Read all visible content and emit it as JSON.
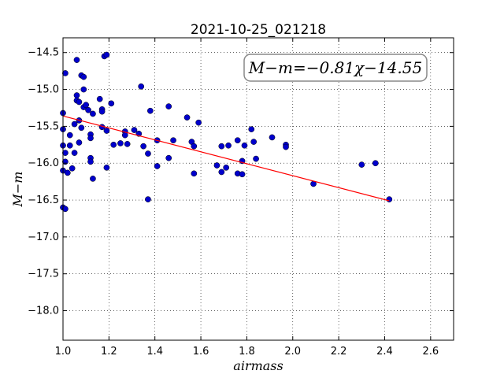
{
  "chart_data": {
    "type": "scatter",
    "title": "2021-10-25_021218",
    "xlabel": "airmass",
    "ylabel": "M−m",
    "xlim": [
      1.0,
      2.7
    ],
    "ylim": [
      -18.4,
      -14.3
    ],
    "grid": true,
    "x_ticks": [
      "1.0",
      "1.2",
      "1.4",
      "1.6",
      "1.8",
      "2.0",
      "2.2",
      "2.4",
      "2.6"
    ],
    "y_ticks": [
      "−14.5",
      "−15.0",
      "−15.5",
      "−16.0",
      "−16.5",
      "−17.0",
      "−17.5",
      "−18.0"
    ],
    "annotation": "M−m=−0.81χ−14.55",
    "annotation_placement": "top-right",
    "fit_line": {
      "slope": -0.81,
      "intercept": -14.55,
      "x_range": [
        1.0,
        2.42
      ],
      "color": "#ff0000"
    },
    "marker_color": "#0000cc",
    "points": [
      [
        1.0,
        -15.32
      ],
      [
        1.0,
        -15.54
      ],
      [
        1.0,
        -15.76
      ],
      [
        1.0,
        -16.1
      ],
      [
        1.0,
        -16.6
      ],
      [
        1.01,
        -14.78
      ],
      [
        1.01,
        -15.86
      ],
      [
        1.01,
        -15.98
      ],
      [
        1.01,
        -16.62
      ],
      [
        1.02,
        -16.13
      ],
      [
        1.03,
        -15.62
      ],
      [
        1.03,
        -15.76
      ],
      [
        1.04,
        -16.07
      ],
      [
        1.05,
        -15.47
      ],
      [
        1.05,
        -15.86
      ],
      [
        1.06,
        -14.6
      ],
      [
        1.06,
        -15.08
      ],
      [
        1.06,
        -15.15
      ],
      [
        1.07,
        -15.17
      ],
      [
        1.07,
        -15.42
      ],
      [
        1.07,
        -15.72
      ],
      [
        1.08,
        -14.81
      ],
      [
        1.08,
        -15.52
      ],
      [
        1.09,
        -14.83
      ],
      [
        1.09,
        -15.0
      ],
      [
        1.09,
        -15.24
      ],
      [
        1.1,
        -15.21
      ],
      [
        1.11,
        -15.28
      ],
      [
        1.12,
        -15.61
      ],
      [
        1.12,
        -15.66
      ],
      [
        1.12,
        -15.93
      ],
      [
        1.12,
        -15.98
      ],
      [
        1.13,
        -15.33
      ],
      [
        1.13,
        -16.21
      ],
      [
        1.16,
        -15.13
      ],
      [
        1.17,
        -15.27
      ],
      [
        1.17,
        -15.3
      ],
      [
        1.17,
        -15.51
      ],
      [
        1.18,
        -14.55
      ],
      [
        1.19,
        -14.53
      ],
      [
        1.19,
        -15.56
      ],
      [
        1.19,
        -16.06
      ],
      [
        1.21,
        -15.19
      ],
      [
        1.22,
        -15.75
      ],
      [
        1.25,
        -15.73
      ],
      [
        1.27,
        -15.57
      ],
      [
        1.27,
        -15.62
      ],
      [
        1.28,
        -15.74
      ],
      [
        1.31,
        -15.55
      ],
      [
        1.33,
        -15.6
      ],
      [
        1.34,
        -14.96
      ],
      [
        1.35,
        -15.77
      ],
      [
        1.37,
        -15.87
      ],
      [
        1.37,
        -16.49
      ],
      [
        1.38,
        -15.29
      ],
      [
        1.41,
        -16.04
      ],
      [
        1.41,
        -15.69
      ],
      [
        1.46,
        -15.23
      ],
      [
        1.46,
        -15.93
      ],
      [
        1.48,
        -15.69
      ],
      [
        1.54,
        -15.38
      ],
      [
        1.56,
        -15.71
      ],
      [
        1.57,
        -16.14
      ],
      [
        1.57,
        -15.77
      ],
      [
        1.59,
        -15.45
      ],
      [
        1.67,
        -16.03
      ],
      [
        1.69,
        -16.12
      ],
      [
        1.69,
        -15.77
      ],
      [
        1.71,
        -16.06
      ],
      [
        1.72,
        -15.76
      ],
      [
        1.76,
        -15.69
      ],
      [
        1.76,
        -16.14
      ],
      [
        1.78,
        -16.15
      ],
      [
        1.78,
        -15.97
      ],
      [
        1.79,
        -15.76
      ],
      [
        1.82,
        -15.54
      ],
      [
        1.83,
        -15.71
      ],
      [
        1.84,
        -15.94
      ],
      [
        1.91,
        -15.65
      ],
      [
        1.97,
        -15.75
      ],
      [
        1.97,
        -15.78
      ],
      [
        2.09,
        -16.28
      ],
      [
        2.3,
        -16.02
      ],
      [
        2.36,
        -16.0
      ],
      [
        2.42,
        -16.49
      ]
    ]
  }
}
